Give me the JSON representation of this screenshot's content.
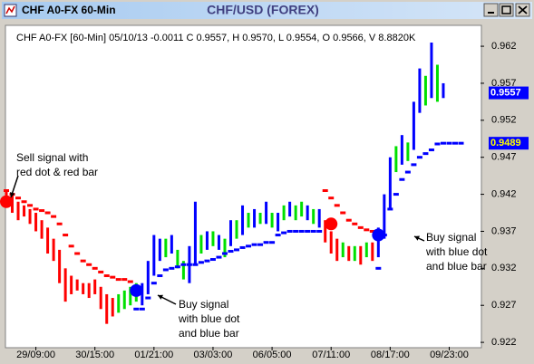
{
  "window_title": "CHF A0-FX 60-Min",
  "chart_data": {
    "type": "range-bar",
    "title": "CHF/USD (FOREX)",
    "subtitle": "CHF A0-FX [60-Min] 05/10/13  -0.0011 C 0.9557, H 0.9570, L 0.9554, O 0.9566, V 8.8820K",
    "xlim": [
      5,
      85.3
    ],
    "xticks": [
      {
        "value": 10,
        "label": "29/09:00"
      },
      {
        "value": 20,
        "label": "30/15:00"
      },
      {
        "value": 30,
        "label": "01/21:00"
      },
      {
        "value": 40,
        "label": "03/03:00"
      },
      {
        "value": 50,
        "label": "06/05:00"
      },
      {
        "value": 60,
        "label": "07/11:00"
      },
      {
        "value": 70,
        "label": "08/17:00"
      },
      {
        "value": 80,
        "label": "09/23:00"
      }
    ],
    "ylim": [
      0.9214,
      0.9647
    ],
    "yticks": [
      0.922,
      0.927,
      0.932,
      0.937,
      0.942,
      0.947,
      0.952,
      0.957,
      0.962
    ],
    "series": [
      {
        "color": "#ff0000",
        "x": [
          5,
          6,
          7,
          8,
          9,
          10,
          11,
          12,
          13,
          14,
          15,
          16,
          17,
          18,
          19,
          20,
          21,
          22,
          23,
          59,
          60,
          61,
          63,
          65,
          67
        ],
        "low": [
          0.9405,
          0.9395,
          0.9385,
          0.939,
          0.938,
          0.937,
          0.936,
          0.934,
          0.933,
          0.93,
          0.9275,
          0.9285,
          0.929,
          0.9285,
          0.928,
          0.9285,
          0.9265,
          0.9245,
          0.9255,
          0.9355,
          0.934,
          0.933,
          0.933,
          0.9325,
          0.933
        ],
        "high": [
          0.9425,
          0.942,
          0.941,
          0.9405,
          0.94,
          0.9395,
          0.9385,
          0.9375,
          0.936,
          0.9345,
          0.932,
          0.931,
          0.9305,
          0.93,
          0.93,
          0.9305,
          0.9295,
          0.9285,
          0.928,
          0.9385,
          0.937,
          0.936,
          0.935,
          0.935,
          0.9355
        ]
      },
      {
        "color": "#00e000",
        "x": [
          24,
          25,
          26,
          27,
          32,
          34,
          35,
          38,
          40,
          42,
          44,
          46,
          48,
          50,
          52,
          54,
          55,
          57,
          62,
          64,
          66,
          71,
          73,
          76,
          78
        ],
        "low": [
          0.926,
          0.9265,
          0.927,
          0.9275,
          0.9335,
          0.932,
          0.9305,
          0.934,
          0.935,
          0.9335,
          0.936,
          0.9375,
          0.938,
          0.9375,
          0.9385,
          0.9385,
          0.939,
          0.938,
          0.9335,
          0.933,
          0.9335,
          0.945,
          0.9465,
          0.954,
          0.9545
        ],
        "high": [
          0.9285,
          0.929,
          0.9295,
          0.93,
          0.936,
          0.9345,
          0.933,
          0.9365,
          0.937,
          0.936,
          0.9385,
          0.9395,
          0.9395,
          0.9395,
          0.9405,
          0.9405,
          0.941,
          0.94,
          0.9355,
          0.935,
          0.9355,
          0.9485,
          0.949,
          0.958,
          0.9595
        ]
      },
      {
        "color": "#0000ff",
        "x": [
          28,
          29,
          30,
          31,
          33,
          36,
          37,
          39,
          41,
          43,
          45,
          47,
          49,
          51,
          53,
          56,
          58,
          68,
          69,
          70,
          72,
          74,
          75,
          77,
          79
        ],
        "low": [
          0.927,
          0.9285,
          0.931,
          0.933,
          0.934,
          0.93,
          0.9325,
          0.9345,
          0.9345,
          0.935,
          0.9365,
          0.9375,
          0.938,
          0.937,
          0.939,
          0.9385,
          0.9375,
          0.9335,
          0.936,
          0.94,
          0.946,
          0.948,
          0.953,
          0.955,
          0.955
        ],
        "high": [
          0.93,
          0.933,
          0.9365,
          0.936,
          0.9365,
          0.935,
          0.941,
          0.937,
          0.9365,
          0.9385,
          0.9405,
          0.94,
          0.941,
          0.9395,
          0.941,
          0.9405,
          0.94,
          0.9375,
          0.942,
          0.947,
          0.95,
          0.9545,
          0.959,
          0.9625,
          0.957
        ]
      }
    ],
    "dots": [
      {
        "color": "#ff0000",
        "x": [
          5,
          6,
          7,
          8,
          9,
          10,
          11,
          12,
          13,
          14,
          15,
          16,
          17,
          18,
          19,
          20,
          21,
          22,
          23,
          24,
          25,
          26,
          59,
          60,
          61,
          62,
          63,
          64,
          65,
          66,
          67
        ],
        "values": [
          0.9425,
          0.942,
          0.9415,
          0.941,
          0.9405,
          0.94,
          0.9398,
          0.9395,
          0.939,
          0.938,
          0.9365,
          0.935,
          0.934,
          0.933,
          0.9325,
          0.932,
          0.9315,
          0.931,
          0.9308,
          0.9305,
          0.9305,
          0.9302,
          0.9425,
          0.9415,
          0.9405,
          0.9395,
          0.9385,
          0.938,
          0.9375,
          0.9372,
          0.937
        ]
      },
      {
        "color": "#0000ff",
        "x": [
          27,
          28,
          29,
          30,
          31,
          32,
          33,
          34,
          35,
          36,
          37,
          38,
          39,
          40,
          41,
          42,
          43,
          44,
          45,
          46,
          47,
          48,
          49,
          50,
          51,
          52,
          53,
          54,
          55,
          56,
          57,
          58,
          68,
          69,
          70,
          71,
          72,
          73,
          74,
          75,
          76,
          77,
          78,
          79,
          80,
          81,
          82
        ],
        "values": [
          0.9265,
          0.9265,
          0.928,
          0.93,
          0.931,
          0.9318,
          0.932,
          0.9322,
          0.9325,
          0.9325,
          0.9325,
          0.9328,
          0.933,
          0.9332,
          0.9335,
          0.934,
          0.9343,
          0.9345,
          0.9348,
          0.935,
          0.9352,
          0.9352,
          0.9355,
          0.9355,
          0.9365,
          0.9368,
          0.937,
          0.937,
          0.937,
          0.937,
          0.937,
          0.937,
          0.932,
          0.9365,
          0.94,
          0.942,
          0.944,
          0.945,
          0.946,
          0.947,
          0.9475,
          0.948,
          0.9488,
          0.9489,
          0.9489,
          0.9489,
          0.9489
        ]
      }
    ],
    "signals": {
      "x": [
        5,
        27,
        60,
        68
      ],
      "values": [
        0.941,
        0.929,
        0.938,
        0.9365
      ],
      "colors": [
        "#ff0000",
        "#0000ff",
        "#ff0000",
        "#0000ff"
      ]
    },
    "price_labels": [
      0.9557,
      0.9489
    ],
    "annotations": [
      {
        "lines": [
          "Sell signal with",
          "red dot & red bar"
        ]
      },
      {
        "lines": [
          "Buy signal",
          "with blue dot",
          "and blue bar"
        ]
      },
      {
        "lines": [
          "Buy signal",
          "with blue dot",
          "and blue bar"
        ]
      }
    ]
  }
}
